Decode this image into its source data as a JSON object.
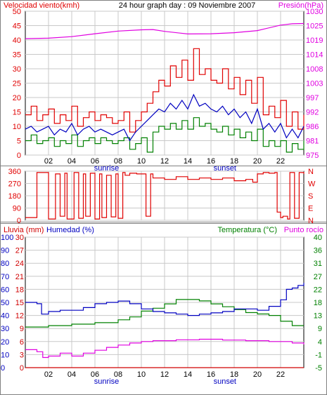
{
  "title": "24 hour graph day : 09 Noviembre 2007",
  "colors": {
    "wind": "#e00000",
    "gust": "#e00000",
    "wind_avg": "#0000c0",
    "wind_dir_light": "#008000",
    "pressure": "#e000e0",
    "direction": "#e00000",
    "rain": "#d00000",
    "humidity": "#0000c0",
    "temperature": "#008000",
    "dew_point": "#e000e0",
    "grid": "#c8c8c8",
    "axis": "#000000"
  },
  "chart_data": [
    {
      "type": "line",
      "name": "wind-pressure",
      "left_label": "Velocidad viento(kmh)",
      "right_label": "Presión(hPa)",
      "left_ticks": [
        "0",
        "5",
        "10",
        "15",
        "20",
        "25",
        "30",
        "35",
        "40",
        "45",
        "50"
      ],
      "right_ticks": [
        "975",
        "981",
        "986",
        "992",
        "997",
        "1003",
        "1008",
        "1014",
        "1019",
        "1025",
        "1030"
      ],
      "x_ticks": [
        "02",
        "04",
        "06",
        "08",
        "10",
        "12",
        "14",
        "16",
        "18",
        "20",
        "22"
      ],
      "sun_labels": {
        "sunrise": "sunrise",
        "sunset": "sunset"
      },
      "ylim_left": [
        0,
        50
      ],
      "ylim_right": [
        975,
        1030
      ],
      "xlim": [
        0,
        24
      ],
      "grid": true,
      "series": {
        "pressure": {
          "x": [
            0,
            2,
            4,
            6,
            8,
            10,
            11,
            12,
            14,
            16,
            18,
            20,
            22,
            23,
            24
          ],
          "values": [
            1019.5,
            1019.7,
            1020.3,
            1021.4,
            1022.4,
            1022.9,
            1023.0,
            1022.3,
            1021.3,
            1021.4,
            1021.8,
            1022.6,
            1024.7,
            1025.2,
            1025.3
          ]
        },
        "gust": {
          "x": [
            0,
            0.5,
            1,
            1.5,
            2,
            2.5,
            3,
            3.5,
            4,
            4.5,
            5,
            5.5,
            6,
            6.5,
            7,
            7.5,
            8,
            8.5,
            9,
            9.5,
            10,
            10.5,
            11,
            11.5,
            12,
            12.5,
            13,
            13.5,
            14,
            14.5,
            15,
            15.5,
            16,
            16.5,
            17,
            17.5,
            18,
            18.5,
            19,
            19.5,
            20,
            20.5,
            21,
            21.5,
            22,
            22.5,
            23,
            23.5,
            24
          ],
          "values": [
            14,
            17,
            12,
            14,
            16,
            11,
            14,
            12,
            17,
            10,
            13,
            15,
            12,
            14,
            13,
            11,
            12,
            15,
            8,
            12,
            15,
            18,
            22,
            26,
            24,
            31,
            27,
            33,
            26,
            37,
            28,
            30,
            26,
            25,
            30,
            23,
            27,
            21,
            26,
            18,
            27,
            14,
            17,
            13,
            19,
            10,
            15,
            9,
            14
          ]
        },
        "wind_avg": {
          "x": [
            0,
            0.5,
            1,
            1.5,
            2,
            2.5,
            3,
            3.5,
            4,
            4.5,
            5,
            5.5,
            6,
            6.5,
            7,
            7.5,
            8,
            8.5,
            9,
            9.5,
            10,
            10.5,
            11,
            11.5,
            12,
            12.5,
            13,
            13.5,
            14,
            14.5,
            15,
            15.5,
            16,
            16.5,
            17,
            17.5,
            18,
            18.5,
            19,
            19.5,
            20,
            20.5,
            21,
            21.5,
            22,
            22.5,
            23,
            23.5,
            24
          ],
          "values": [
            9,
            10,
            8,
            9,
            10,
            7,
            9,
            8,
            11,
            7,
            9,
            10,
            8,
            9,
            8,
            7,
            8,
            9,
            5,
            8,
            10,
            12,
            14,
            16,
            15,
            18,
            16,
            19,
            16,
            21,
            17,
            18,
            16,
            15,
            17,
            14,
            16,
            13,
            15,
            11,
            16,
            9,
            11,
            8,
            11,
            6,
            9,
            6,
            10
          ]
        },
        "wind_min": {
          "x": [
            0,
            0.5,
            1,
            1.5,
            2,
            2.5,
            3,
            3.5,
            4,
            4.5,
            5,
            5.5,
            6,
            6.5,
            7,
            7.5,
            8,
            8.5,
            9,
            9.5,
            10,
            10.5,
            11,
            11.5,
            12,
            12.5,
            13,
            13.5,
            14,
            14.5,
            15,
            15.5,
            16,
            16.5,
            17,
            17.5,
            18,
            18.5,
            19,
            19.5,
            20,
            20.5,
            21,
            21.5,
            22,
            22.5,
            23,
            23.5,
            24
          ],
          "values": [
            5,
            7,
            4,
            5,
            6,
            3,
            5,
            4,
            7,
            3,
            5,
            6,
            4,
            6,
            5,
            4,
            5,
            6,
            2,
            4,
            6,
            1,
            8,
            10,
            9,
            11,
            9,
            12,
            9,
            13,
            10,
            11,
            9,
            8,
            10,
            7,
            9,
            6,
            8,
            5,
            9,
            3,
            5,
            3,
            5,
            1,
            4,
            2,
            5
          ]
        }
      }
    },
    {
      "type": "line",
      "name": "wind-direction",
      "left_ticks": [
        "0",
        "90",
        "180",
        "270",
        "360"
      ],
      "right_ticks": [
        "N",
        "E",
        "S",
        "W",
        "N"
      ],
      "ylim": [
        0,
        360
      ],
      "x": [
        0,
        0.8,
        1.0,
        1.6,
        2.0,
        2.6,
        3.0,
        3.4,
        3.6,
        4.2,
        4.6,
        5.0,
        5.2,
        5.6,
        6.0,
        6.4,
        6.6,
        7.0,
        7.4,
        7.8,
        8.0,
        8.4,
        8.6,
        9.0,
        9.6,
        10.0,
        10.4,
        10.8,
        11.0,
        12.0,
        13.0,
        14.0,
        15.0,
        16.0,
        17.0,
        18.0,
        19.0,
        19.6,
        20.0,
        20.5,
        21.0,
        21.5,
        21.7,
        22.0,
        22.2,
        22.6,
        22.8,
        23.2,
        23.6,
        24.0
      ],
      "values": [
        20,
        20,
        350,
        350,
        10,
        340,
        30,
        345,
        10,
        350,
        15,
        340,
        30,
        345,
        10,
        340,
        20,
        330,
        25,
        340,
        15,
        350,
        330,
        345,
        340,
        340,
        30,
        340,
        310,
        300,
        320,
        300,
        310,
        300,
        310,
        290,
        300,
        280,
        340,
        350,
        345,
        350,
        60,
        20,
        30,
        10,
        350,
        15,
        350,
        340
      ]
    },
    {
      "type": "line",
      "name": "rain-humidity-temperature",
      "left_label_rain": "Lluvia (mm)",
      "left_label_humidity": "Humedad (%)",
      "right_label_temp": "Temperatura (°C)",
      "right_label_dew": "Punto rocío",
      "humidity_ticks": [
        "0",
        "10",
        "20",
        "30",
        "40",
        "50",
        "60",
        "70",
        "80",
        "90",
        "100"
      ],
      "rain_ticks": [
        "0",
        "3",
        "6",
        "9",
        "12",
        "15",
        "18",
        "21",
        "24",
        "27",
        "30"
      ],
      "temp_ticks": [
        "-5",
        "-1",
        "4",
        "9",
        "13",
        "18",
        "22",
        "27",
        "31",
        "36",
        "40"
      ],
      "x_ticks": [
        "02",
        "04",
        "06",
        "08",
        "10",
        "12",
        "14",
        "16",
        "18",
        "20",
        "22"
      ],
      "sun_labels": {
        "sunrise": "sunrise",
        "sunset": "sunset"
      },
      "ylim_humidity": [
        0,
        100
      ],
      "ylim_temp": [
        -5,
        40
      ],
      "grid": true,
      "series": {
        "rain": {
          "x": [
            0,
            24
          ],
          "values": [
            0,
            0
          ]
        },
        "humidity": {
          "x": [
            0,
            1,
            1.4,
            2,
            3,
            4,
            5,
            6,
            7,
            8,
            9,
            10,
            11,
            12,
            13,
            14,
            15,
            16,
            17,
            18,
            19,
            20,
            21,
            22,
            22.5,
            23,
            23.5,
            24
          ],
          "values": [
            50,
            49,
            41,
            43,
            44,
            44,
            46,
            49,
            50,
            51,
            49,
            45,
            43,
            42,
            41,
            40,
            41,
            42,
            43,
            45,
            45,
            44,
            47,
            52,
            60,
            61,
            63,
            65
          ]
        },
        "temperature": {
          "x": [
            0,
            2,
            4,
            6,
            8,
            9,
            10,
            11,
            12,
            13,
            14,
            15,
            16,
            17,
            18,
            19,
            20,
            21,
            22,
            23,
            24
          ],
          "values": [
            9.0,
            9.5,
            10.0,
            10.5,
            11.5,
            12.5,
            14.5,
            15.5,
            17.0,
            18.5,
            18.5,
            18.0,
            17.0,
            16.0,
            15.0,
            14.0,
            13.5,
            13.0,
            11.0,
            9.5,
            9.5
          ]
        },
        "dew_point": {
          "x": [
            0,
            1,
            1.5,
            2,
            3,
            4,
            5,
            6,
            7,
            8,
            9,
            10,
            11,
            12,
            13,
            14,
            15,
            16,
            17,
            18,
            19,
            20,
            21,
            22,
            23,
            24
          ],
          "values": [
            1.2,
            0.5,
            -1.5,
            -1.0,
            0,
            -1.0,
            0,
            1.0,
            2.0,
            2.8,
            3.5,
            4.0,
            4.3,
            4.3,
            4.6,
            4.6,
            4.8,
            4.8,
            4.5,
            4.5,
            4.3,
            4.3,
            4.0,
            4.0,
            3.5,
            3.0
          ]
        }
      }
    }
  ]
}
